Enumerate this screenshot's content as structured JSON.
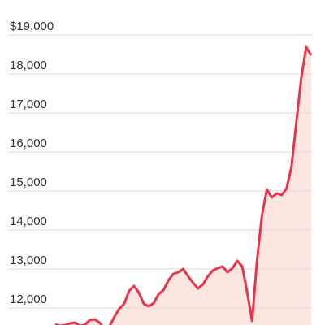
{
  "chart_data": {
    "type": "line",
    "values": [
      11583,
      11542,
      11562,
      11604,
      11625,
      11542,
      11562,
      11688,
      11708,
      11625,
      11458,
      11521,
      11771,
      11979,
      12104,
      12438,
      12563,
      12396,
      12104,
      12042,
      12125,
      12354,
      12458,
      12708,
      12875,
      12917,
      13000,
      12813,
      12646,
      12500,
      12604,
      12813,
      12958,
      13021,
      13063,
      12917,
      13021,
      13208,
      13063,
      12396,
      11667,
      13229,
      14375,
      15042,
      14833,
      14938,
      14896,
      15063,
      15625,
      16771,
      17917,
      18688,
      18479
    ],
    "color": "#e8334a",
    "fill": "#fde6e2",
    "ylim": [
      11562,
      19896
    ],
    "yticks": [
      {
        "value": 12000,
        "label": "12,000"
      },
      {
        "value": 13000,
        "label": "13,000"
      },
      {
        "value": 14000,
        "label": "14,000"
      },
      {
        "value": 15000,
        "label": "15,000"
      },
      {
        "value": 16000,
        "label": "16,000"
      },
      {
        "value": 17000,
        "label": "17,000"
      },
      {
        "value": 18000,
        "label": "18,000"
      },
      {
        "value": 19000,
        "label": "$19,000"
      }
    ],
    "grid": true
  }
}
